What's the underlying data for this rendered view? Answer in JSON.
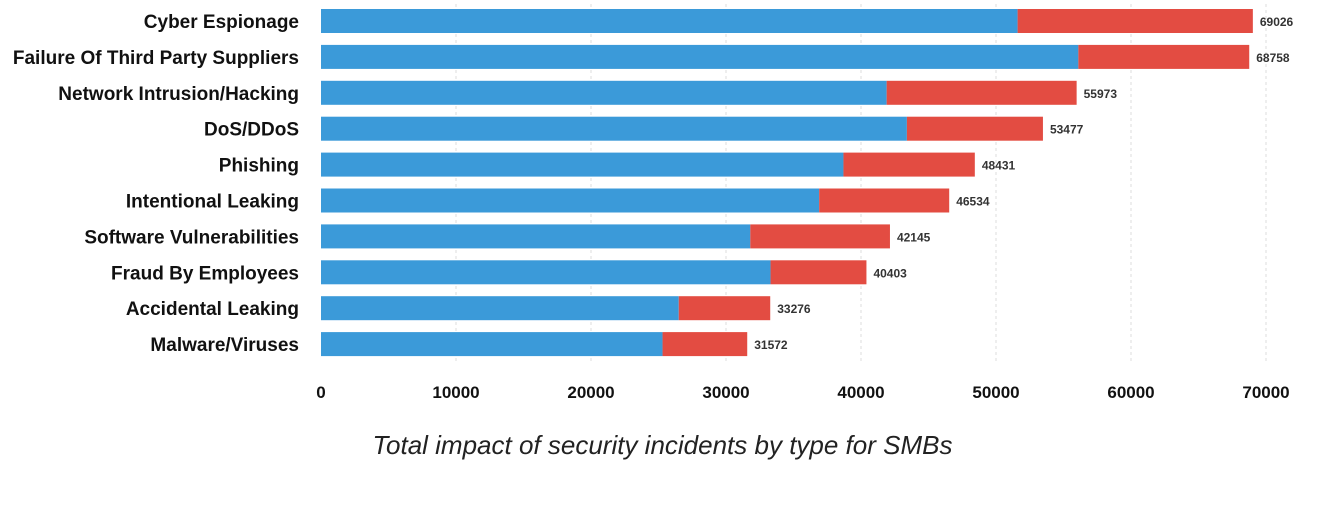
{
  "chart_data": {
    "type": "bar",
    "orientation": "horizontal",
    "stacked": true,
    "categories": [
      "Cyber Espionage",
      "Failure Of Third Party Suppliers",
      "Network Intrusion/Hacking",
      "DoS/DDoS",
      "Phishing",
      "Intentional Leaking",
      "Software Vulnerabilities",
      "Fraud By Employees",
      "Accidental Leaking",
      "Malware/Viruses"
    ],
    "series": [
      {
        "color": "#3b9ad9",
        "values": [
          51600,
          56100,
          41900,
          43400,
          38700,
          36900,
          31800,
          33300,
          26500,
          25300
        ]
      },
      {
        "color": "#e34c42",
        "values": [
          17426,
          12658,
          14073,
          10077,
          9731,
          9634,
          10345,
          7103,
          6776,
          6272
        ]
      }
    ],
    "totals": [
      69026,
      68758,
      55973,
      53477,
      48431,
      46534,
      42145,
      40403,
      33276,
      31572
    ],
    "total_labels": [
      "69026",
      "68758",
      "55973",
      "53477",
      "48431",
      "46534",
      "42145",
      "40403",
      "33276",
      "31572"
    ],
    "x_ticks": [
      0,
      10000,
      20000,
      30000,
      40000,
      50000,
      60000,
      70000
    ],
    "x_tick_labels": [
      "0",
      "10000",
      "20000",
      "30000",
      "40000",
      "50000",
      "60000",
      "70000"
    ],
    "xlim": [
      0,
      70000
    ],
    "grid": true,
    "title": "Total impact of security incidents by type for SMBs",
    "xlabel": "",
    "ylabel": ""
  }
}
